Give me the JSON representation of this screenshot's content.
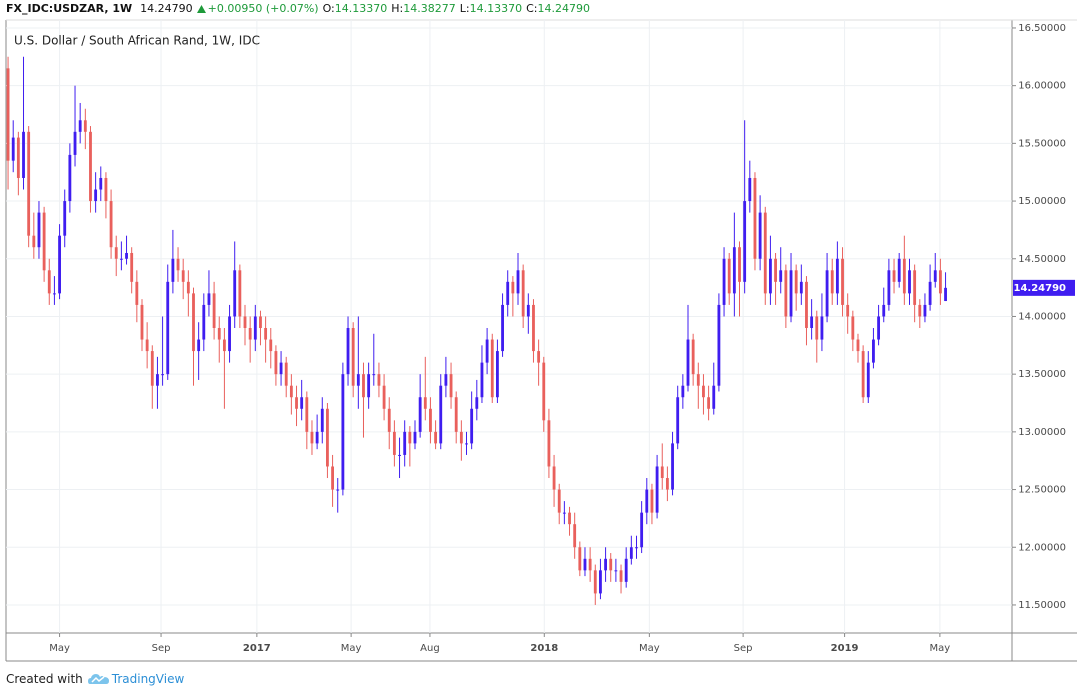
{
  "header": {
    "symbol": "FX_IDC:USDZAR, 1W",
    "last": "14.24790",
    "change": "+0.00950 (+0.07%)",
    "open_key": "O:",
    "open": "14.13370",
    "high_key": "H:",
    "high": "14.38277",
    "low_key": "L:",
    "low": "14.13370",
    "close_key": "C:",
    "close": "14.24790"
  },
  "footer": {
    "created": "Created with",
    "brand": "TradingView"
  },
  "chart_data": {
    "type": "candlestick",
    "title": "U.S. Dollar / South African Rand, 1W, IDC",
    "up_color": "#3f1df0",
    "down_color": "#e9605c",
    "grid": true,
    "last_price_label": {
      "value": 14.2479,
      "label": "14.24790"
    },
    "ylim": [
      11.257,
      16.569
    ],
    "yticks": [
      {
        "value": 11.5,
        "label": "11.50000"
      },
      {
        "value": 12,
        "label": "12.00000"
      },
      {
        "value": 12.5,
        "label": "12.50000"
      },
      {
        "value": 13,
        "label": "13.00000"
      },
      {
        "value": 13.5,
        "label": "13.50000"
      },
      {
        "value": 14,
        "label": "14.00000"
      },
      {
        "value": 14.5,
        "label": "14.50000"
      },
      {
        "value": 15,
        "label": "15.00000"
      },
      {
        "value": 15.5,
        "label": "15.50000"
      },
      {
        "value": 16,
        "label": "16.00000"
      },
      {
        "value": 16.5,
        "label": "16.50000"
      }
    ],
    "xlim": [
      -0.4,
      194.9
    ],
    "xticks": [
      {
        "value": 10,
        "label": "May"
      },
      {
        "value": 29.7,
        "label": "Sep"
      },
      {
        "value": 48.3,
        "label": "2017"
      },
      {
        "value": 66.6,
        "label": "May"
      },
      {
        "value": 81.9,
        "label": "Aug"
      },
      {
        "value": 104.1,
        "label": "2018"
      },
      {
        "value": 124.5,
        "label": "May"
      },
      {
        "value": 142.7,
        "label": "Sep"
      },
      {
        "value": 162.4,
        "label": "2019"
      },
      {
        "value": 180.9,
        "label": "May"
      }
    ],
    "ohlc": [
      [
        16.15,
        16.25,
        15.1,
        15.35
      ],
      [
        15.35,
        15.7,
        15.25,
        15.55
      ],
      [
        15.55,
        15.6,
        15.05,
        15.2
      ],
      [
        15.2,
        16.25,
        15.1,
        15.6
      ],
      [
        15.6,
        15.65,
        14.6,
        14.7
      ],
      [
        14.7,
        14.9,
        14.5,
        14.6
      ],
      [
        14.6,
        15.0,
        14.5,
        14.9
      ],
      [
        14.9,
        14.95,
        14.3,
        14.4
      ],
      [
        14.4,
        14.5,
        14.1,
        14.2
      ],
      [
        14.2,
        14.35,
        14.1,
        14.2
      ],
      [
        14.2,
        14.8,
        14.15,
        14.7
      ],
      [
        14.7,
        15.1,
        14.6,
        15.0
      ],
      [
        15.0,
        15.5,
        14.9,
        15.4
      ],
      [
        15.4,
        16.0,
        15.3,
        15.6
      ],
      [
        15.6,
        15.85,
        15.5,
        15.7
      ],
      [
        15.7,
        15.8,
        15.45,
        15.6
      ],
      [
        15.6,
        15.65,
        14.9,
        15.0
      ],
      [
        15.0,
        15.25,
        14.9,
        15.1
      ],
      [
        15.1,
        15.3,
        15.0,
        15.2
      ],
      [
        15.2,
        15.25,
        14.85,
        15.0
      ],
      [
        15.0,
        15.1,
        14.5,
        14.6
      ],
      [
        14.6,
        14.7,
        14.35,
        14.5
      ],
      [
        14.5,
        14.65,
        14.4,
        14.5
      ],
      [
        14.5,
        14.7,
        14.45,
        14.55
      ],
      [
        14.55,
        14.6,
        14.2,
        14.3
      ],
      [
        14.3,
        14.4,
        13.95,
        14.1
      ],
      [
        14.1,
        14.15,
        13.7,
        13.8
      ],
      [
        13.8,
        13.95,
        13.55,
        13.7
      ],
      [
        13.7,
        13.75,
        13.2,
        13.4
      ],
      [
        13.4,
        13.65,
        13.2,
        13.5
      ],
      [
        13.5,
        14.0,
        13.4,
        13.5
      ],
      [
        13.5,
        14.45,
        13.45,
        14.3
      ],
      [
        14.3,
        14.75,
        14.2,
        14.5
      ],
      [
        14.5,
        14.6,
        14.3,
        14.4
      ],
      [
        14.4,
        14.5,
        14.15,
        14.3
      ],
      [
        14.3,
        14.4,
        14.0,
        14.2
      ],
      [
        14.2,
        14.25,
        13.4,
        13.7
      ],
      [
        13.7,
        13.95,
        13.45,
        13.8
      ],
      [
        13.8,
        14.2,
        13.7,
        14.1
      ],
      [
        14.1,
        14.4,
        14.0,
        14.2
      ],
      [
        14.2,
        14.3,
        13.8,
        13.9
      ],
      [
        13.9,
        14.0,
        13.6,
        13.8
      ],
      [
        13.8,
        13.9,
        13.2,
        13.7
      ],
      [
        13.7,
        14.1,
        13.6,
        14.0
      ],
      [
        14.0,
        14.65,
        13.9,
        14.4
      ],
      [
        14.4,
        14.45,
        13.9,
        14.0
      ],
      [
        14.0,
        14.1,
        13.75,
        13.9
      ],
      [
        13.9,
        14.0,
        13.6,
        13.8
      ],
      [
        13.8,
        14.1,
        13.7,
        14.0
      ],
      [
        14.0,
        14.05,
        13.75,
        13.9
      ],
      [
        13.9,
        14.0,
        13.6,
        13.8
      ],
      [
        13.8,
        13.9,
        13.55,
        13.7
      ],
      [
        13.7,
        13.75,
        13.4,
        13.5
      ],
      [
        13.5,
        13.7,
        13.4,
        13.6
      ],
      [
        13.6,
        13.65,
        13.3,
        13.4
      ],
      [
        13.4,
        13.5,
        13.15,
        13.3
      ],
      [
        13.3,
        13.4,
        13.05,
        13.2
      ],
      [
        13.2,
        13.45,
        13.1,
        13.3
      ],
      [
        13.3,
        13.35,
        12.85,
        13.0
      ],
      [
        13.0,
        13.1,
        12.8,
        12.9
      ],
      [
        12.9,
        13.15,
        12.85,
        13.0
      ],
      [
        13.0,
        13.3,
        12.9,
        13.2
      ],
      [
        13.2,
        13.25,
        12.6,
        12.7
      ],
      [
        12.7,
        12.8,
        12.35,
        12.5
      ],
      [
        12.5,
        12.6,
        12.3,
        12.5
      ],
      [
        12.5,
        13.6,
        12.45,
        13.5
      ],
      [
        13.5,
        14.0,
        13.4,
        13.9
      ],
      [
        13.9,
        13.95,
        13.3,
        13.4
      ],
      [
        13.4,
        14.0,
        13.2,
        13.5
      ],
      [
        13.5,
        13.6,
        12.95,
        13.3
      ],
      [
        13.3,
        13.6,
        13.2,
        13.5
      ],
      [
        13.5,
        13.85,
        13.4,
        13.5
      ],
      [
        13.5,
        13.6,
        13.3,
        13.4
      ],
      [
        13.4,
        13.5,
        13.1,
        13.2
      ],
      [
        13.2,
        13.3,
        12.85,
        13.0
      ],
      [
        13.0,
        13.1,
        12.7,
        12.8
      ],
      [
        12.8,
        12.95,
        12.6,
        12.8
      ],
      [
        12.8,
        13.1,
        12.7,
        13.0
      ],
      [
        13.0,
        13.05,
        12.7,
        12.9
      ],
      [
        12.9,
        13.1,
        12.85,
        13.0
      ],
      [
        13.0,
        13.5,
        12.95,
        13.3
      ],
      [
        13.3,
        13.65,
        13.1,
        13.2
      ],
      [
        13.2,
        13.3,
        12.9,
        13.0
      ],
      [
        13.0,
        13.1,
        12.85,
        12.9
      ],
      [
        12.9,
        13.5,
        12.85,
        13.4
      ],
      [
        13.4,
        13.65,
        13.3,
        13.5
      ],
      [
        13.5,
        13.6,
        13.2,
        13.3
      ],
      [
        13.3,
        13.35,
        12.9,
        13.0
      ],
      [
        13.0,
        13.1,
        12.75,
        12.9
      ],
      [
        12.9,
        13.0,
        12.8,
        12.9
      ],
      [
        12.9,
        13.35,
        12.85,
        13.2
      ],
      [
        13.2,
        13.45,
        13.1,
        13.3
      ],
      [
        13.3,
        13.75,
        13.25,
        13.6
      ],
      [
        13.6,
        13.9,
        13.5,
        13.8
      ],
      [
        13.8,
        13.85,
        13.25,
        13.3
      ],
      [
        13.3,
        13.8,
        13.25,
        13.7
      ],
      [
        13.7,
        14.2,
        13.65,
        14.1
      ],
      [
        14.1,
        14.4,
        14.0,
        14.3
      ],
      [
        14.3,
        14.35,
        14.0,
        14.2
      ],
      [
        14.2,
        14.55,
        14.1,
        14.4
      ],
      [
        14.4,
        14.45,
        13.9,
        14.0
      ],
      [
        14.0,
        14.2,
        13.85,
        14.1
      ],
      [
        14.1,
        14.15,
        13.6,
        13.7
      ],
      [
        13.7,
        13.8,
        13.4,
        13.6
      ],
      [
        13.6,
        13.65,
        13.0,
        13.1
      ],
      [
        13.1,
        13.2,
        12.6,
        12.7
      ],
      [
        12.7,
        12.8,
        12.35,
        12.5
      ],
      [
        12.5,
        12.55,
        12.2,
        12.3
      ],
      [
        12.3,
        12.4,
        12.2,
        12.3
      ],
      [
        12.3,
        12.35,
        12.1,
        12.2
      ],
      [
        12.2,
        12.3,
        11.9,
        12.0
      ],
      [
        12.0,
        12.05,
        11.75,
        11.8
      ],
      [
        11.8,
        12.0,
        11.75,
        11.9
      ],
      [
        11.9,
        12.0,
        11.7,
        11.8
      ],
      [
        11.8,
        11.85,
        11.5,
        11.6
      ],
      [
        11.6,
        11.9,
        11.55,
        11.8
      ],
      [
        11.8,
        12.0,
        11.7,
        11.9
      ],
      [
        11.9,
        11.95,
        11.7,
        11.8
      ],
      [
        11.8,
        11.9,
        11.7,
        11.8
      ],
      [
        11.8,
        11.85,
        11.6,
        11.7
      ],
      [
        11.7,
        12.0,
        11.65,
        11.9
      ],
      [
        11.9,
        12.1,
        11.85,
        12.0
      ],
      [
        12.0,
        12.1,
        11.9,
        12.0
      ],
      [
        12.0,
        12.4,
        11.95,
        12.3
      ],
      [
        12.3,
        12.6,
        12.2,
        12.5
      ],
      [
        12.5,
        12.55,
        12.2,
        12.3
      ],
      [
        12.3,
        12.8,
        12.25,
        12.7
      ],
      [
        12.7,
        12.9,
        12.5,
        12.6
      ],
      [
        12.6,
        12.7,
        12.4,
        12.5
      ],
      [
        12.5,
        13.0,
        12.45,
        12.9
      ],
      [
        12.9,
        13.4,
        12.85,
        13.3
      ],
      [
        13.3,
        13.5,
        13.2,
        13.4
      ],
      [
        13.4,
        14.1,
        13.35,
        13.8
      ],
      [
        13.8,
        13.85,
        13.4,
        13.5
      ],
      [
        13.5,
        13.6,
        13.2,
        13.4
      ],
      [
        13.4,
        13.5,
        13.15,
        13.3
      ],
      [
        13.3,
        13.4,
        13.1,
        13.2
      ],
      [
        13.2,
        13.6,
        13.15,
        13.4
      ],
      [
        13.4,
        14.2,
        13.35,
        14.1
      ],
      [
        14.1,
        14.6,
        14.0,
        14.5
      ],
      [
        14.5,
        14.55,
        14.1,
        14.2
      ],
      [
        14.2,
        14.9,
        14.0,
        14.6
      ],
      [
        14.6,
        14.65,
        14.0,
        14.3
      ],
      [
        14.3,
        15.7,
        14.2,
        15.0
      ],
      [
        15.0,
        15.35,
        14.9,
        15.2
      ],
      [
        15.2,
        15.25,
        14.4,
        14.5
      ],
      [
        14.5,
        15.05,
        14.4,
        14.9
      ],
      [
        14.9,
        14.95,
        14.1,
        14.2
      ],
      [
        14.2,
        14.7,
        14.1,
        14.5
      ],
      [
        14.5,
        14.55,
        14.1,
        14.3
      ],
      [
        14.3,
        14.6,
        14.2,
        14.4
      ],
      [
        14.4,
        14.45,
        13.9,
        14.0
      ],
      [
        14.0,
        14.55,
        13.95,
        14.4
      ],
      [
        14.4,
        14.45,
        14.05,
        14.2
      ],
      [
        14.2,
        14.45,
        14.1,
        14.3
      ],
      [
        14.3,
        14.35,
        13.75,
        13.9
      ],
      [
        13.9,
        14.15,
        13.8,
        14.0
      ],
      [
        14.0,
        14.05,
        13.6,
        13.8
      ],
      [
        13.8,
        14.2,
        13.7,
        14.0
      ],
      [
        14.0,
        14.55,
        13.95,
        14.4
      ],
      [
        14.4,
        14.5,
        14.1,
        14.2
      ],
      [
        14.2,
        14.65,
        14.1,
        14.5
      ],
      [
        14.5,
        14.6,
        14.0,
        14.1
      ],
      [
        14.1,
        14.2,
        13.85,
        14.0
      ],
      [
        14.0,
        14.05,
        13.7,
        13.8
      ],
      [
        13.8,
        13.85,
        13.6,
        13.7
      ],
      [
        13.7,
        13.75,
        13.25,
        13.3
      ],
      [
        13.3,
        13.7,
        13.25,
        13.6
      ],
      [
        13.6,
        13.9,
        13.55,
        13.8
      ],
      [
        13.8,
        14.1,
        13.75,
        14.0
      ],
      [
        14.0,
        14.25,
        13.95,
        14.1
      ],
      [
        14.1,
        14.5,
        14.05,
        14.4
      ],
      [
        14.4,
        14.5,
        14.2,
        14.3
      ],
      [
        14.3,
        14.55,
        14.25,
        14.5
      ],
      [
        14.5,
        14.7,
        14.1,
        14.2
      ],
      [
        14.2,
        14.5,
        14.1,
        14.4
      ],
      [
        14.4,
        14.45,
        13.95,
        14.1
      ],
      [
        14.1,
        14.15,
        13.9,
        14.0
      ],
      [
        14.0,
        14.2,
        13.95,
        14.1
      ],
      [
        14.1,
        14.45,
        14.05,
        14.3
      ],
      [
        14.3,
        14.55,
        14.25,
        14.4
      ],
      [
        14.4,
        14.5,
        14.1,
        14.2
      ],
      [
        14.1337,
        14.38277,
        14.1337,
        14.2479
      ]
    ]
  }
}
